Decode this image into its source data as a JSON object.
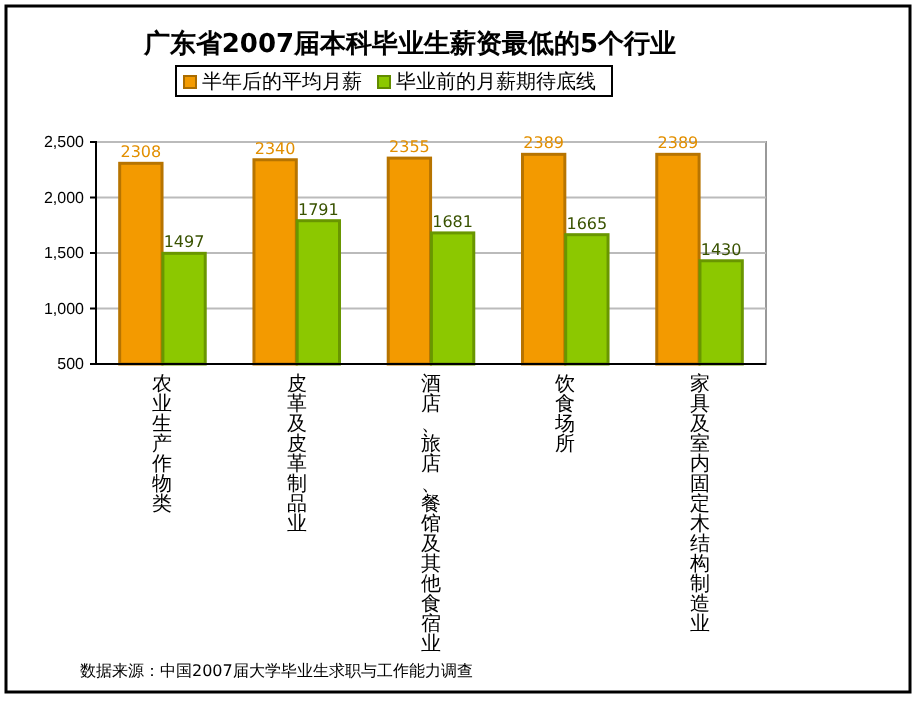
{
  "chart_data": {
    "type": "bar",
    "title": "广东省2007届本科毕业生薪资最低的5个行业",
    "categories": [
      "农业生产作物类",
      "皮革及皮革制品业",
      "酒店、旅店、餐馆及其他食宿业",
      "饮食场所",
      "家具及室内固定木结构制造业"
    ],
    "series": [
      {
        "name": "半年后的平均月薪",
        "color": "#f39a00",
        "values": [
          2308,
          2340,
          2355,
          2389,
          2389
        ]
      },
      {
        "name": "毕业前的月薪期待底线",
        "color": "#8cc800",
        "values": [
          1497,
          1791,
          1681,
          1665,
          1430
        ]
      }
    ],
    "ylim": [
      500,
      2500
    ],
    "yticks": [
      {
        "value": 500,
        "label": "500"
      },
      {
        "value": 1000,
        "label": "1,000"
      },
      {
        "value": 1500,
        "label": "1,500"
      },
      {
        "value": 2000,
        "label": "2,000"
      },
      {
        "value": 2500,
        "label": "2,500"
      }
    ],
    "grid": "y",
    "legend": "top",
    "data_labels": true,
    "annotations": [
      "数据来源：中国2007届大学毕业生求职与工作能力调查"
    ]
  }
}
